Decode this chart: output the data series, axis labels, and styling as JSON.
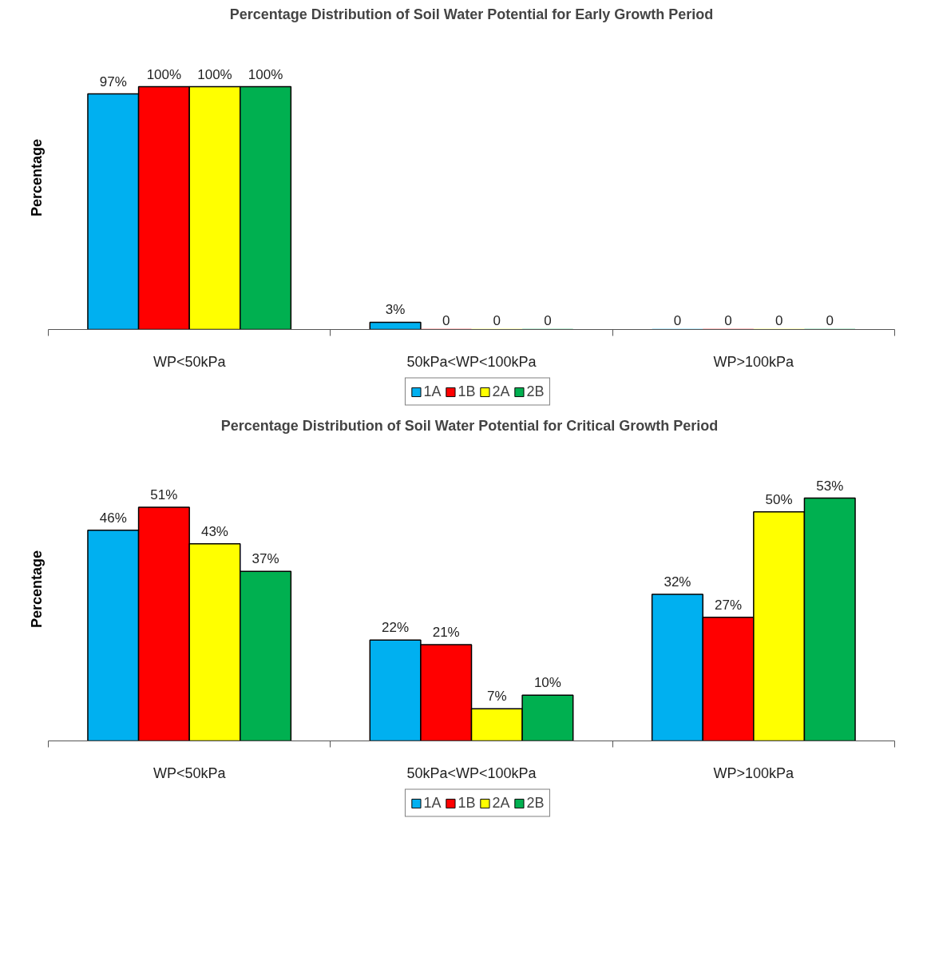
{
  "chart_data": [
    {
      "type": "bar",
      "title": "Percentage Distribution of Soil Water Potential for Early Growth Period",
      "ylabel": "Percentage",
      "categories": [
        "WP<50kPa",
        "50kPa<WP<100kPa",
        "WP>100kPa"
      ],
      "series": [
        {
          "name": "1A",
          "color": "#00b0f0",
          "values": [
            97,
            3,
            0
          ],
          "value_labels": [
            "97%",
            "3%",
            "0"
          ]
        },
        {
          "name": "1B",
          "color": "#ff0000",
          "values": [
            100,
            0,
            0
          ],
          "value_labels": [
            "100%",
            "0",
            "0"
          ]
        },
        {
          "name": "2A",
          "color": "#ffff00",
          "values": [
            100,
            0,
            0
          ],
          "value_labels": [
            "100%",
            "0",
            "0"
          ]
        },
        {
          "name": "2B",
          "color": "#00b050",
          "values": [
            100,
            0,
            0
          ],
          "value_labels": [
            "100%",
            "0",
            "0"
          ]
        }
      ],
      "legend": "bottom",
      "grid": false,
      "tick_labels": "x"
    },
    {
      "type": "bar",
      "title": "Percentage Distribution of Soil Water Potential for Critical Growth  Period",
      "ylabel": "Percentage",
      "categories": [
        "WP<50kPa",
        "50kPa<WP<100kPa",
        "WP>100kPa"
      ],
      "series": [
        {
          "name": "1A",
          "color": "#00b0f0",
          "values": [
            46,
            22,
            32
          ],
          "value_labels": [
            "46%",
            "22%",
            "32%"
          ]
        },
        {
          "name": "1B",
          "color": "#ff0000",
          "values": [
            51,
            21,
            27
          ],
          "value_labels": [
            "51%",
            "21%",
            "27%"
          ]
        },
        {
          "name": "2A",
          "color": "#ffff00",
          "values": [
            43,
            7,
            50
          ],
          "value_labels": [
            "43%",
            "7%",
            "50%"
          ]
        },
        {
          "name": "2B",
          "color": "#00b050",
          "values": [
            37,
            10,
            53
          ],
          "value_labels": [
            "37%",
            "10%",
            "53%"
          ]
        }
      ],
      "legend": "bottom",
      "grid": false,
      "tick_labels": "x"
    }
  ]
}
